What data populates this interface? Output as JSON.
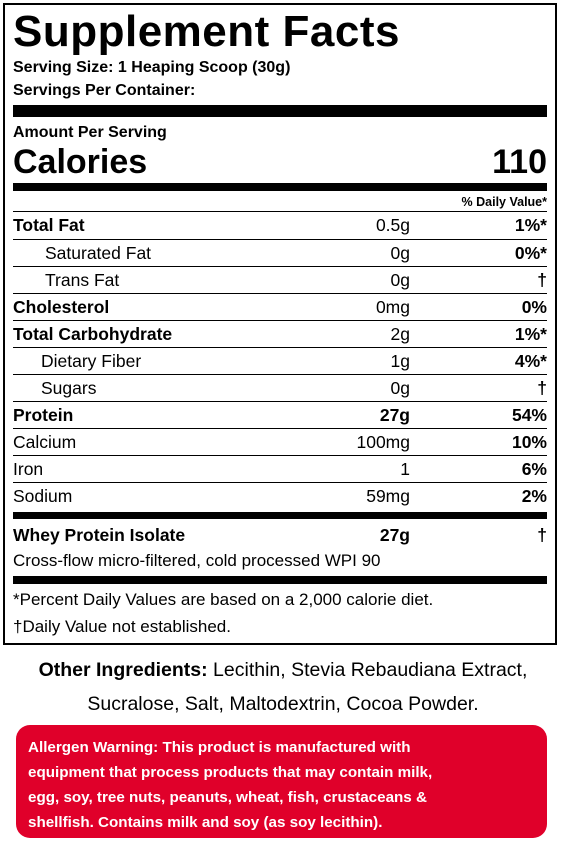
{
  "panel": {
    "title": "Supplement Facts",
    "serving_size": "Serving Size: 1 Heaping Scoop (30g)",
    "servings_per_container": "Servings Per Container:",
    "amount_per_serving": "Amount Per Serving",
    "calories_label": "Calories",
    "calories_value": "110",
    "daily_value_header": "% Daily Value*",
    "rows": [
      {
        "name": "Total Fat",
        "amount": "0.5g",
        "dv": "1%*"
      },
      {
        "name": "Saturated Fat",
        "amount": "0g",
        "dv": "0%*"
      },
      {
        "name": "Trans Fat",
        "amount": "0g",
        "dv": "†"
      },
      {
        "name": "Cholesterol",
        "amount": "0mg",
        "dv": "0%"
      },
      {
        "name": "Total Carbohydrate",
        "amount": "2g",
        "dv": "1%*"
      },
      {
        "name": "Dietary Fiber",
        "amount": "1g",
        "dv": "4%*"
      },
      {
        "name": "Sugars",
        "amount": "0g",
        "dv": "†"
      },
      {
        "name": "Protein",
        "amount": "27g",
        "dv": "54%"
      },
      {
        "name": "Calcium",
        "amount": "100mg",
        "dv": "10%"
      },
      {
        "name": "Iron",
        "amount": "1",
        "dv": "6%"
      },
      {
        "name": "Sodium",
        "amount": "59mg",
        "dv": "2%"
      }
    ],
    "whey": {
      "name": "Whey Protein Isolate",
      "amount": "27g",
      "dv": "†"
    },
    "whey_note": "Cross-flow micro-filtered, cold processed WPI 90",
    "footnote_percent": "*Percent Daily Values are based on a 2,000 calorie diet.",
    "footnote_dagger": "†Daily Value not established."
  },
  "other_ingredients": {
    "label": "Other Ingredients:",
    "line1": " Lecithin, Stevia Rebaudiana Extract,",
    "line2": "Sucralose, Salt, Maltodextrin, Cocoa Powder."
  },
  "allergen": {
    "line1": "Allergen Warning: This product is manufactured with",
    "line2": "equipment that process products that may contain milk,",
    "line3": "egg, soy, tree nuts, peanuts, wheat, fish, crustaceans &",
    "line4": "shellfish. Contains milk and soy (as soy lecithin).",
    "color": "#e0002a"
  }
}
